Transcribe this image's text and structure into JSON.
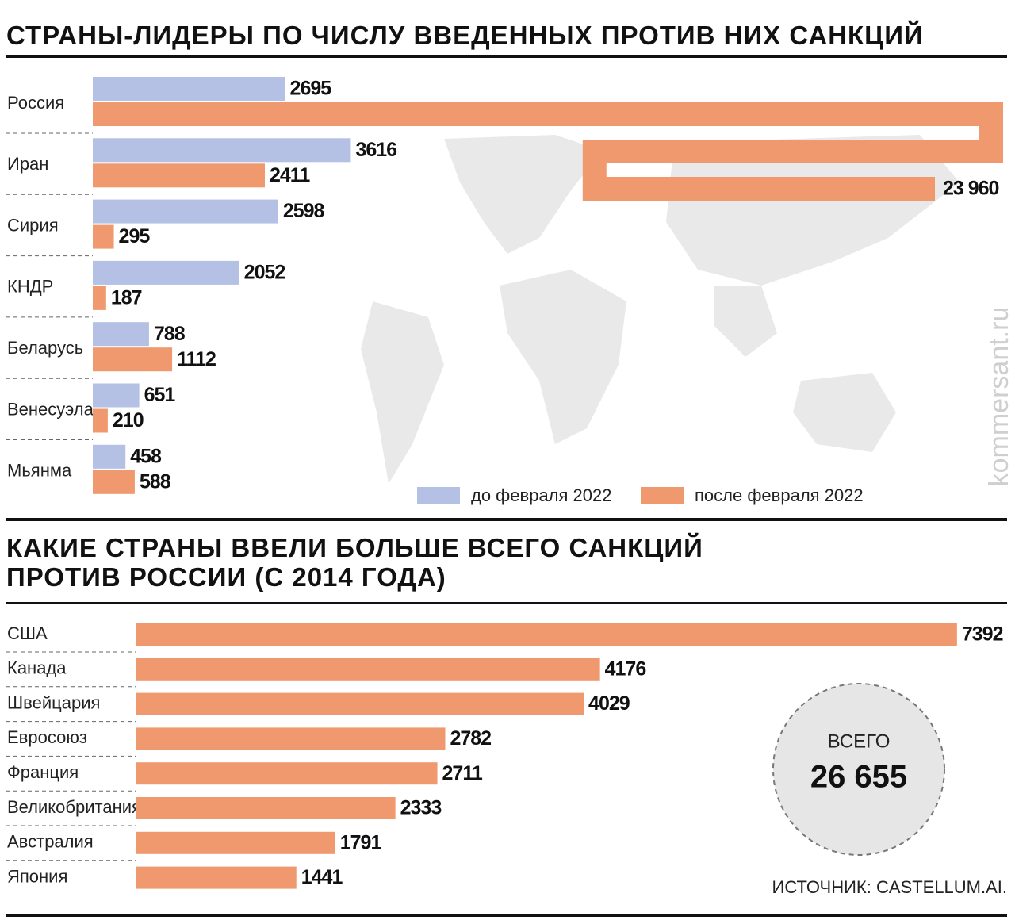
{
  "chart_data": [
    {
      "type": "bar",
      "orientation": "horizontal",
      "title": "СТРАНЫ-ЛИДЕРЫ ПО ЧИСЛУ ВВЕДЕННЫХ ПРОТИВ НИХ САНКЦИЙ",
      "categories": [
        "Россия",
        "Иран",
        "Сирия",
        "КНДР",
        "Беларусь",
        "Венесуэла",
        "Мьянма"
      ],
      "series": [
        {
          "name": "до февраля 2022",
          "color": "#b4c0e4",
          "values": [
            2695,
            3616,
            2598,
            2052,
            788,
            651,
            458
          ]
        },
        {
          "name": "после февраля 2022",
          "color": "#f0996e",
          "values": [
            23960,
            2411,
            295,
            187,
            1112,
            210,
            588
          ],
          "value_labels": [
            "23 960",
            "2411",
            "295",
            "187",
            "1112",
            "210",
            "588"
          ]
        }
      ]
    },
    {
      "type": "bar",
      "orientation": "horizontal",
      "title": "КАКИЕ СТРАНЫ ВВЕЛИ БОЛЬШЕ ВСЕГО САНКЦИЙ ПРОТИВ РОССИИ (С 2014 ГОДА)",
      "categories": [
        "США",
        "Канада",
        "Швейцария",
        "Евросоюз",
        "Франция",
        "Великобритания",
        "Австралия",
        "Япония"
      ],
      "values": [
        7392,
        4176,
        4029,
        2782,
        2711,
        2333,
        1791,
        1441
      ],
      "color": "#f0996e",
      "total_label": "ВСЕГО",
      "total_text": "26 655"
    }
  ],
  "source": "ИСТОЧНИК: CASTELLUM.AI.",
  "watermark": "kommersant.ru"
}
